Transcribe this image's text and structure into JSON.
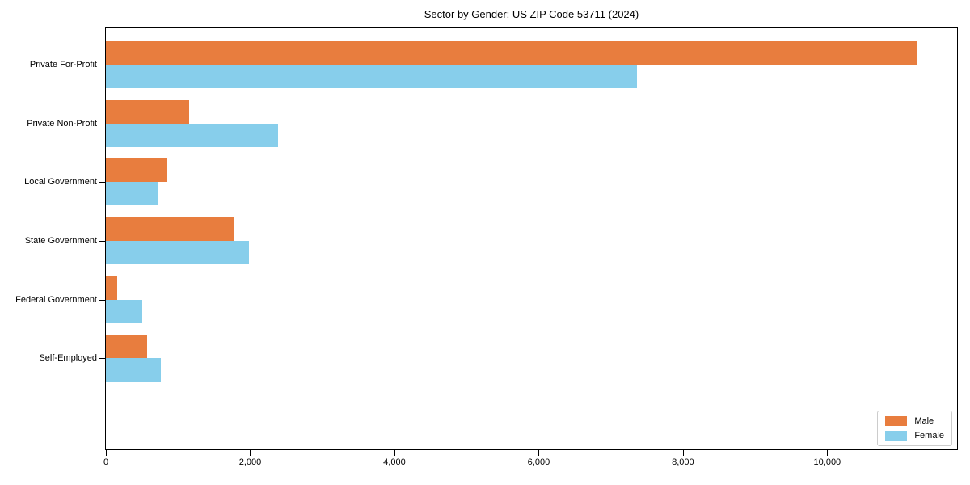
{
  "chart_data": {
    "type": "bar",
    "orientation": "horizontal",
    "title": "Sector by Gender: US ZIP Code 53711 (2024)",
    "categories": [
      "Private For-Profit",
      "Private Non-Profit",
      "Local Government",
      "State Government",
      "Federal Government",
      "Self-Employed"
    ],
    "series": [
      {
        "name": "Male",
        "color": "#e87d3e",
        "values": [
          11240,
          1150,
          840,
          1780,
          155,
          570
        ]
      },
      {
        "name": "Female",
        "color": "#87ceeb",
        "values": [
          7360,
          2390,
          715,
          1980,
          505,
          760
        ]
      }
    ],
    "xlabel": "",
    "ylabel": "",
    "xlim": [
      0,
      11800
    ],
    "x_ticks": [
      {
        "value": 0,
        "label": "0"
      },
      {
        "value": 2000,
        "label": "2,000"
      },
      {
        "value": 4000,
        "label": "4,000"
      },
      {
        "value": 6000,
        "label": "6,000"
      },
      {
        "value": 8000,
        "label": "8,000"
      },
      {
        "value": 10000,
        "label": "10,000"
      }
    ],
    "grid": false,
    "legend": {
      "position": "lower right"
    }
  },
  "colors": {
    "background": "#ffffff",
    "axis": "#000000",
    "legend_border": "#cccccc"
  }
}
